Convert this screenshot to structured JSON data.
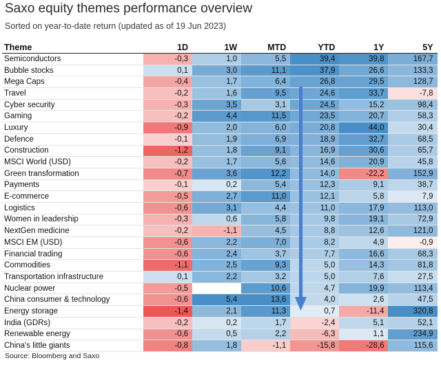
{
  "title": "Saxo equity themes performance overview",
  "subtitle": "Sorted on year-to-date return (updated as of 19 Jun 2023)",
  "source": "Source: Bloomberg and Saxo",
  "colors": {
    "positive": "#2f7fc0",
    "negative": "#e8423f"
  },
  "chart_data": {
    "type": "table",
    "title": "Saxo equity themes performance overview",
    "columns": [
      "Theme",
      "1D",
      "1W",
      "MTD",
      "YTD",
      "1Y",
      "5Y"
    ],
    "rows": [
      {
        "theme": "Semiconductors",
        "values": [
          "-0,3",
          "1,0",
          "5,5",
          "39,4",
          "39,8",
          "167,7"
        ]
      },
      {
        "theme": "Bubble stocks",
        "values": [
          "0,1",
          "3,0",
          "11,1",
          "37,9",
          "26,6",
          "133,3"
        ]
      },
      {
        "theme": "Mega Caps",
        "values": [
          "-0,4",
          "1,7",
          "6,4",
          "26,8",
          "29,5",
          "128,7"
        ]
      },
      {
        "theme": "Travel",
        "values": [
          "-0,2",
          "1,6",
          "9,5",
          "24,6",
          "33,7",
          "-7,8"
        ]
      },
      {
        "theme": "Cyber security",
        "values": [
          "-0,3",
          "3,5",
          "3,1",
          "24,5",
          "15,2",
          "98,4"
        ]
      },
      {
        "theme": "Gaming",
        "values": [
          "-0,2",
          "4,4",
          "11,5",
          "23,5",
          "20,7",
          "58,3"
        ]
      },
      {
        "theme": "Luxury",
        "values": [
          "-0,9",
          "2,0",
          "6,0",
          "20,8",
          "44,0",
          "30,4"
        ]
      },
      {
        "theme": "Defence",
        "values": [
          "-0,1",
          "1,9",
          "6,9",
          "18,9",
          "32,7",
          "68,5"
        ]
      },
      {
        "theme": "Construction",
        "values": [
          "-1,2",
          "1,8",
          "9,1",
          "16,9",
          "30,6",
          "65,7"
        ]
      },
      {
        "theme": "MSCI World (USD)",
        "values": [
          "-0,2",
          "1,7",
          "5,6",
          "14,6",
          "20,9",
          "45,8"
        ]
      },
      {
        "theme": "Green transformation",
        "values": [
          "-0,7",
          "3,6",
          "12,2",
          "14,0",
          "-22,2",
          "152,9"
        ]
      },
      {
        "theme": "Payments",
        "values": [
          "-0,1",
          "0,2",
          "5,4",
          "12,3",
          "9,1",
          "38,7"
        ]
      },
      {
        "theme": "E-commerce",
        "values": [
          "-0,5",
          "2,7",
          "11,0",
          "12,1",
          "5,8",
          "7,9"
        ]
      },
      {
        "theme": "Logistics",
        "values": [
          "-0,6",
          "3,1",
          "4,4",
          "11,0",
          "17,9",
          "113,0"
        ]
      },
      {
        "theme": "Women in leadership",
        "values": [
          "-0,3",
          "0,6",
          "5,8",
          "9,8",
          "19,1",
          "72,9"
        ]
      },
      {
        "theme": "NextGen medicine",
        "values": [
          "-0,2",
          "-1,1",
          "4,5",
          "8,8",
          "12,6",
          "121,0"
        ]
      },
      {
        "theme": "MSCI EM (USD)",
        "values": [
          "-0,6",
          "2,2",
          "7,0",
          "8,2",
          "4,9",
          "-0,9"
        ]
      },
      {
        "theme": "Financial trading",
        "values": [
          "-0,6",
          "2,4",
          "3,7",
          "7,7",
          "16,6",
          "68,3"
        ]
      },
      {
        "theme": "Commodities",
        "values": [
          "-1,1",
          "2,5",
          "9,3",
          "5,0",
          "14,3",
          "81,8"
        ]
      },
      {
        "theme": "Transportation infrastructure",
        "values": [
          "0,1",
          "2,2",
          "3,2",
          "5,0",
          "7,6",
          "27,5"
        ]
      },
      {
        "theme": "Nuclear power",
        "values": [
          "-0,5",
          "",
          "10,6",
          "4,7",
          "19,9",
          "113,4"
        ]
      },
      {
        "theme": "China consumer & technology",
        "values": [
          "-0,6",
          "5,4",
          "13,6",
          "4,0",
          "2,6",
          "47,5"
        ]
      },
      {
        "theme": "Energy storage",
        "values": [
          "-1,4",
          "2,1",
          "11,3",
          "0,7",
          "-11,4",
          "320,8"
        ]
      },
      {
        "theme": "India (GDRs)",
        "values": [
          "-0,2",
          "0,2",
          "1,7",
          "-2,4",
          "5,1",
          "52,1"
        ]
      },
      {
        "theme": "Renewable energy",
        "values": [
          "-0,6",
          "0,5",
          "2,2",
          "-6,3",
          "1,1",
          "234,9"
        ]
      },
      {
        "theme": "China's little giants",
        "values": [
          "-0,8",
          "1,8",
          "-1,1",
          "-15,8",
          "-28,6",
          "115,6"
        ]
      }
    ]
  }
}
